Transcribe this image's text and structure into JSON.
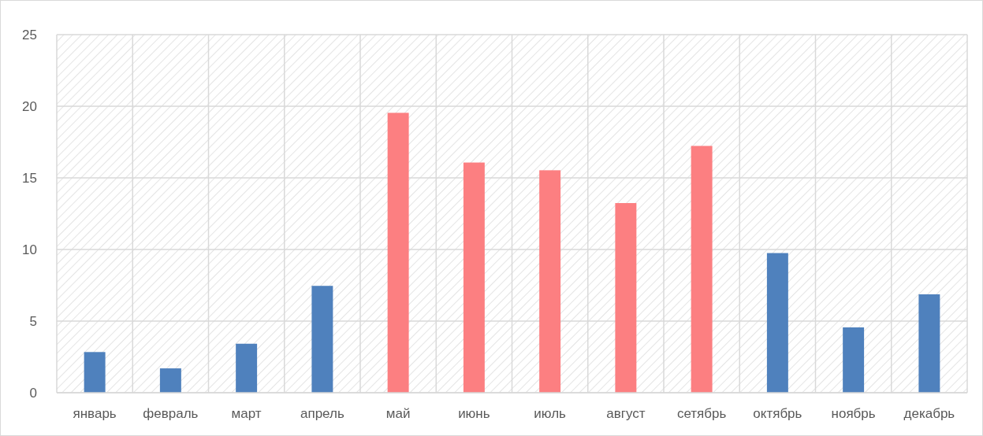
{
  "chart_data": {
    "type": "bar",
    "categories": [
      "январь",
      "февраль",
      "март",
      "апрель",
      "май",
      "июнь",
      "июль",
      "август",
      "сетябрь",
      "октябрь",
      "ноябрь",
      "декабрь"
    ],
    "values": [
      2.84,
      1.7,
      3.42,
      7.46,
      19.54,
      16.07,
      15.53,
      13.24,
      17.23,
      9.75,
      4.56,
      6.87
    ],
    "colors": [
      "#4f81bd",
      "#4f81bd",
      "#4f81bd",
      "#4f81bd",
      "#fc7f81",
      "#fc7f81",
      "#fc7f81",
      "#fc7f81",
      "#fc7f81",
      "#4f81bd",
      "#4f81bd",
      "#4f81bd"
    ],
    "ylim": [
      0,
      25
    ],
    "yticks": [
      0,
      5,
      10,
      15,
      20,
      25
    ],
    "grid": true
  }
}
